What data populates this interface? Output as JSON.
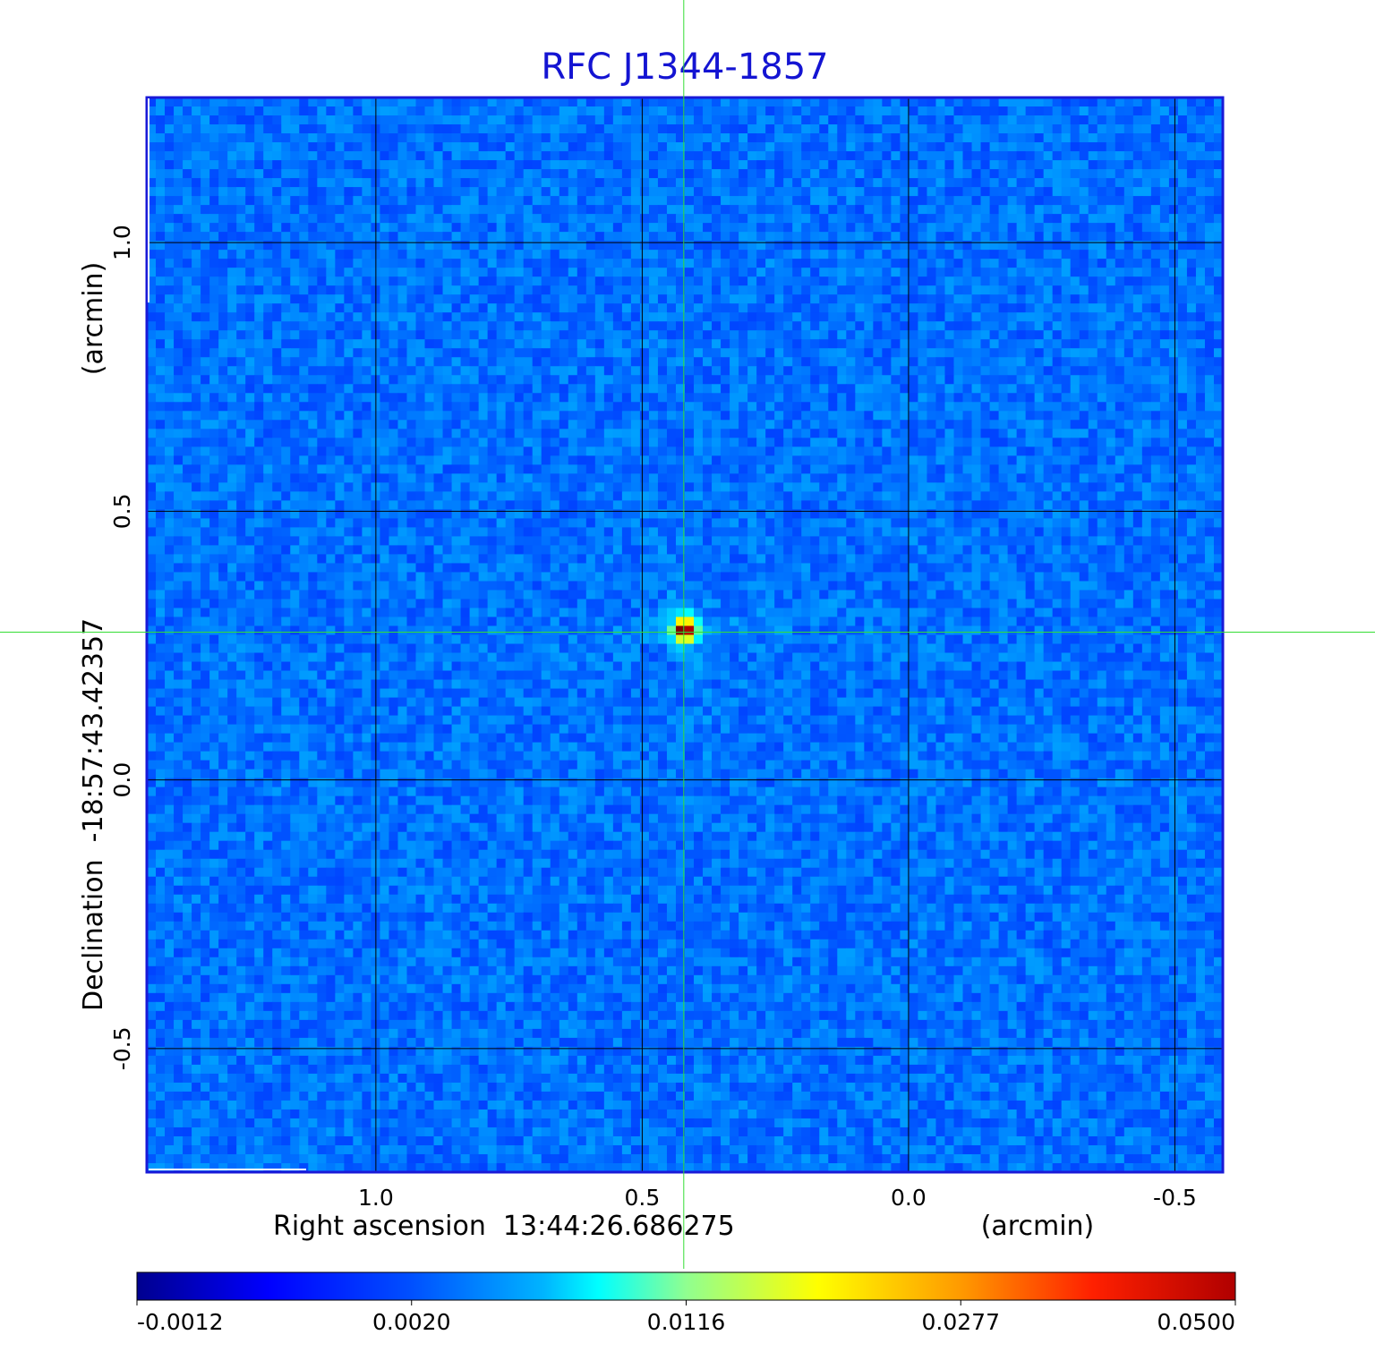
{
  "chart_data": {
    "type": "heatmap",
    "title": "RFC J1344-1857",
    "xlabel": "Right ascension  13:44:26.686275",
    "xunit": "(arcmin)",
    "ylabel": "Declination  -18:57:43.42357",
    "yunit": "(arcmin)",
    "xlim": [
      1.43,
      -0.59
    ],
    "ylim": [
      -0.73,
      1.27
    ],
    "x_ticks": [
      {
        "value": 1.0,
        "label": "1.0"
      },
      {
        "value": 0.5,
        "label": "0.5"
      },
      {
        "value": 0.0,
        "label": "0.0"
      },
      {
        "value": -0.5,
        "label": "-0.5"
      }
    ],
    "y_ticks": [
      {
        "value": 1.0,
        "label": "1.0"
      },
      {
        "value": 0.5,
        "label": "0.5"
      },
      {
        "value": 0.0,
        "label": "0.0"
      },
      {
        "value": -0.5,
        "label": "-0.5"
      }
    ],
    "grid": true,
    "crosshair": {
      "x": 0.422,
      "y": 0.275
    },
    "source": {
      "x": 0.42,
      "y": 0.28,
      "peak": 0.05
    },
    "colormap": "jet",
    "colorbar": {
      "range": [
        -0.0012,
        0.05
      ],
      "ticks": [
        "-0.0012",
        "0.0020",
        "0.0116",
        "0.0277",
        "0.0500"
      ]
    },
    "colors": {
      "title": "#1414d2",
      "frame": "#1a1ad8",
      "grid": "#000000",
      "crosshair": "#33dd33"
    }
  }
}
